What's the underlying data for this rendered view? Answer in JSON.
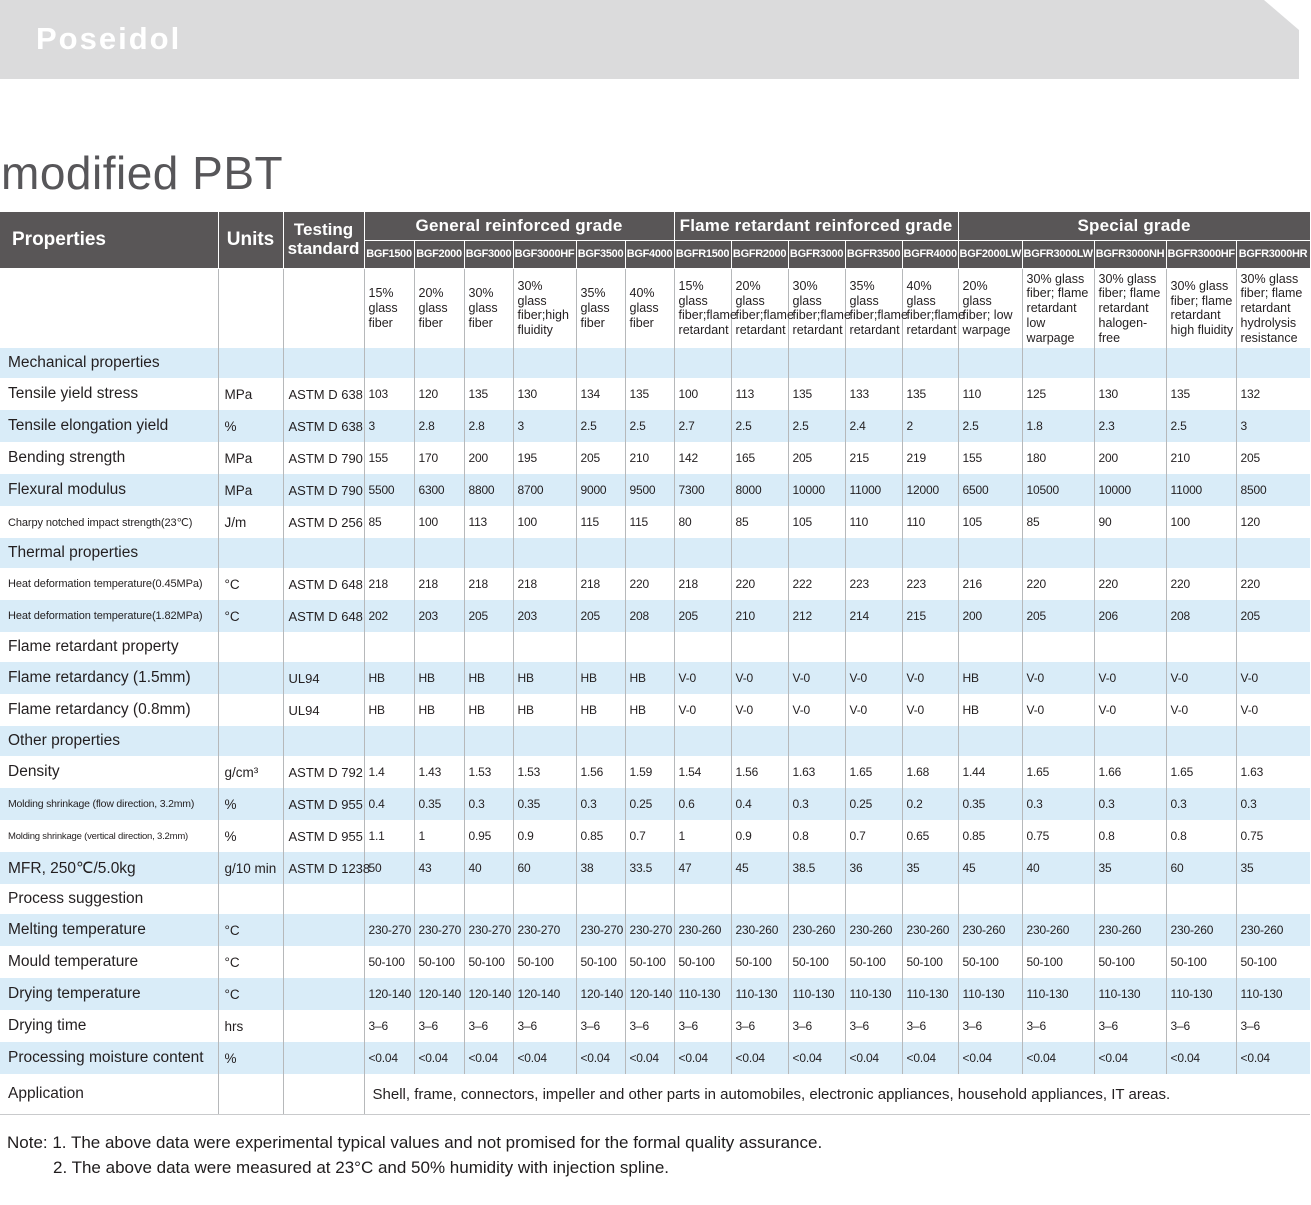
{
  "brand": "Poseidol",
  "page_title": "modified PBT",
  "table": {
    "corner_headers": [
      "Properties",
      "Units",
      "Testing standard"
    ],
    "groups": [
      {
        "label": "General reinforced grade",
        "span": 6
      },
      {
        "label": "Flame retardant reinforced grade",
        "span": 5
      },
      {
        "label": "Special grade",
        "span": 5
      }
    ],
    "grades": [
      "BGF1500",
      "BGF2000",
      "BGF3000",
      "BGF3000HF",
      "BGF3500",
      "BGF4000",
      "BGFR1500",
      "BGFR2000",
      "BGFR3000",
      "BGFR3500",
      "BGFR4000",
      "BGF2000LW",
      "BGFR3000LW",
      "BGFR3000NH",
      "BGFR3000HF",
      "BGFR3000HR"
    ],
    "descriptions": [
      "15% glass fiber",
      "20% glass fiber",
      "30% glass fiber",
      "30% glass fiber;high fluidity",
      "35% glass fiber",
      "40% glass fiber",
      "15% glass fiber;flame retardant",
      "20% glass fiber;flame retardant",
      "30% glass fiber;flame retardant",
      "35% glass fiber;flame retardant",
      "40% glass fiber;flame retardant",
      "20% glass fiber; low warpage",
      "30% glass fiber; flame retardant low warpage",
      "30% glass fiber; flame retardant halogen-free",
      "30% glass fiber; flame retardant high fluidity",
      "30% glass fiber; flame retardant hydrolysis resistance"
    ],
    "rows": [
      {
        "type": "section",
        "label": "Mechanical properties"
      },
      {
        "type": "data",
        "label": "Tensile yield stress",
        "unit": "MPa",
        "standard": "ASTM D 638",
        "values": [
          "103",
          "120",
          "135",
          "130",
          "134",
          "135",
          "100",
          "113",
          "135",
          "133",
          "135",
          "110",
          "125",
          "130",
          "135",
          "132"
        ]
      },
      {
        "type": "data",
        "label": "Tensile elongation yield",
        "unit": "%",
        "standard": "ASTM D 638",
        "values": [
          "3",
          "2.8",
          "2.8",
          "3",
          "2.5",
          "2.5",
          "2.7",
          "2.5",
          "2.5",
          "2.4",
          "2",
          "2.5",
          "1.8",
          "2.3",
          "2.5",
          "3"
        ]
      },
      {
        "type": "data",
        "label": "Bending strength",
        "unit": "MPa",
        "standard": "ASTM D 790",
        "values": [
          "155",
          "170",
          "200",
          "195",
          "205",
          "210",
          "142",
          "165",
          "205",
          "215",
          "219",
          "155",
          "180",
          "200",
          "210",
          "205"
        ]
      },
      {
        "type": "data",
        "label": "Flexural modulus",
        "unit": "MPa",
        "standard": "ASTM D 790",
        "values": [
          "5500",
          "6300",
          "8800",
          "8700",
          "9000",
          "9500",
          "7300",
          "8000",
          "10000",
          "11000",
          "12000",
          "6500",
          "10500",
          "10000",
          "11000",
          "8500"
        ]
      },
      {
        "type": "data",
        "label": "Charpy notched impact strength(23℃)",
        "unit": "J/m",
        "standard": "ASTM D 256",
        "values": [
          "85",
          "100",
          "113",
          "100",
          "115",
          "115",
          "80",
          "85",
          "105",
          "110",
          "110",
          "105",
          "85",
          "90",
          "100",
          "120"
        ]
      },
      {
        "type": "section",
        "label": "Thermal properties"
      },
      {
        "type": "data",
        "label": "Heat deformation temperature(0.45MPa)",
        "unit": "°C",
        "standard": "ASTM D 648",
        "values": [
          "218",
          "218",
          "218",
          "218",
          "218",
          "220",
          "218",
          "220",
          "222",
          "223",
          "223",
          "216",
          "220",
          "220",
          "220",
          "220"
        ]
      },
      {
        "type": "data",
        "label": "Heat deformation temperature(1.82MPa)",
        "unit": "°C",
        "standard": "ASTM D 648",
        "values": [
          "202",
          "203",
          "205",
          "203",
          "205",
          "208",
          "205",
          "210",
          "212",
          "214",
          "215",
          "200",
          "205",
          "206",
          "208",
          "205"
        ]
      },
      {
        "type": "section",
        "label": "Flame retardant property"
      },
      {
        "type": "data",
        "label": "Flame retardancy (1.5mm)",
        "unit": "",
        "standard": "UL94",
        "values": [
          "HB",
          "HB",
          "HB",
          "HB",
          "HB",
          "HB",
          "V-0",
          "V-0",
          "V-0",
          "V-0",
          "V-0",
          "HB",
          "V-0",
          "V-0",
          "V-0",
          "V-0"
        ]
      },
      {
        "type": "data",
        "label": "Flame retardancy (0.8mm)",
        "unit": "",
        "standard": "UL94",
        "values": [
          "HB",
          "HB",
          "HB",
          "HB",
          "HB",
          "HB",
          "V-0",
          "V-0",
          "V-0",
          "V-0",
          "V-0",
          "HB",
          "V-0",
          "V-0",
          "V-0",
          "V-0"
        ]
      },
      {
        "type": "section",
        "label": "Other properties"
      },
      {
        "type": "data",
        "label": "Density",
        "unit": "g/cm³",
        "standard": "ASTM D 792",
        "values": [
          "1.4",
          "1.43",
          "1.53",
          "1.53",
          "1.56",
          "1.59",
          "1.54",
          "1.56",
          "1.63",
          "1.65",
          "1.68",
          "1.44",
          "1.65",
          "1.66",
          "1.65",
          "1.63"
        ]
      },
      {
        "type": "data",
        "label": "Molding shrinkage (flow direction, 3.2mm)",
        "unit": "%",
        "standard": "ASTM D 955",
        "values": [
          "0.4",
          "0.35",
          "0.3",
          "0.35",
          "0.3",
          "0.25",
          "0.6",
          "0.4",
          "0.3",
          "0.25",
          "0.2",
          "0.35",
          "0.3",
          "0.3",
          "0.3",
          "0.3"
        ]
      },
      {
        "type": "data",
        "label": "Molding shrinkage (vertical direction, 3.2mm)",
        "unit": "%",
        "standard": "ASTM D 955",
        "values": [
          "1.1",
          "1",
          "0.95",
          "0.9",
          "0.85",
          "0.7",
          "1",
          "0.9",
          "0.8",
          "0.7",
          "0.65",
          "0.85",
          "0.75",
          "0.8",
          "0.8",
          "0.75"
        ]
      },
      {
        "type": "data",
        "label": "MFR, 250℃/5.0kg",
        "unit": "g/10 min",
        "standard": "ASTM D 1238",
        "values": [
          "50",
          "43",
          "40",
          "60",
          "38",
          "33.5",
          "47",
          "45",
          "38.5",
          "36",
          "35",
          "45",
          "40",
          "35",
          "60",
          "35"
        ]
      },
      {
        "type": "section",
        "label": "Process suggestion"
      },
      {
        "type": "data",
        "label": "Melting temperature",
        "unit": "°C",
        "standard": "",
        "values": [
          "230-270",
          "230-270",
          "230-270",
          "230-270",
          "230-270",
          "230-270",
          "230-260",
          "230-260",
          "230-260",
          "230-260",
          "230-260",
          "230-260",
          "230-260",
          "230-260",
          "230-260",
          "230-260"
        ]
      },
      {
        "type": "data",
        "label": "Mould temperature",
        "unit": "°C",
        "standard": "",
        "values": [
          "50-100",
          "50-100",
          "50-100",
          "50-100",
          "50-100",
          "50-100",
          "50-100",
          "50-100",
          "50-100",
          "50-100",
          "50-100",
          "50-100",
          "50-100",
          "50-100",
          "50-100",
          "50-100"
        ]
      },
      {
        "type": "data",
        "label": "Drying temperature",
        "unit": "°C",
        "standard": "",
        "values": [
          "120-140",
          "120-140",
          "120-140",
          "120-140",
          "120-140",
          "120-140",
          "110-130",
          "110-130",
          "110-130",
          "110-130",
          "110-130",
          "110-130",
          "110-130",
          "110-130",
          "110-130",
          "110-130"
        ]
      },
      {
        "type": "data",
        "label": "Drying time",
        "unit": "hrs",
        "standard": "",
        "values": [
          "3–6",
          "3–6",
          "3–6",
          "3–6",
          "3–6",
          "3–6",
          "3–6",
          "3–6",
          "3–6",
          "3–6",
          "3–6",
          "3–6",
          "3–6",
          "3–6",
          "3–6",
          "3–6"
        ]
      },
      {
        "type": "data",
        "label": "Processing moisture content",
        "unit": "%",
        "standard": "",
        "values": [
          "<0.04",
          "<0.04",
          "<0.04",
          "<0.04",
          "<0.04",
          "<0.04",
          "<0.04",
          "<0.04",
          "<0.04",
          "<0.04",
          "<0.04",
          "<0.04",
          "<0.04",
          "<0.04",
          "<0.04",
          "<0.04"
        ]
      },
      {
        "type": "application",
        "label": "Application",
        "text": "Shell, frame, connectors, impeller and other parts in automobiles, electronic appliances, household appliances, IT areas."
      }
    ]
  },
  "notes": [
    "Note: 1. The above data were experimental typical values and not promised for the formal quality assurance.",
    "2. The above data were measured at 23°C and 50% humidity with injection spline."
  ]
}
